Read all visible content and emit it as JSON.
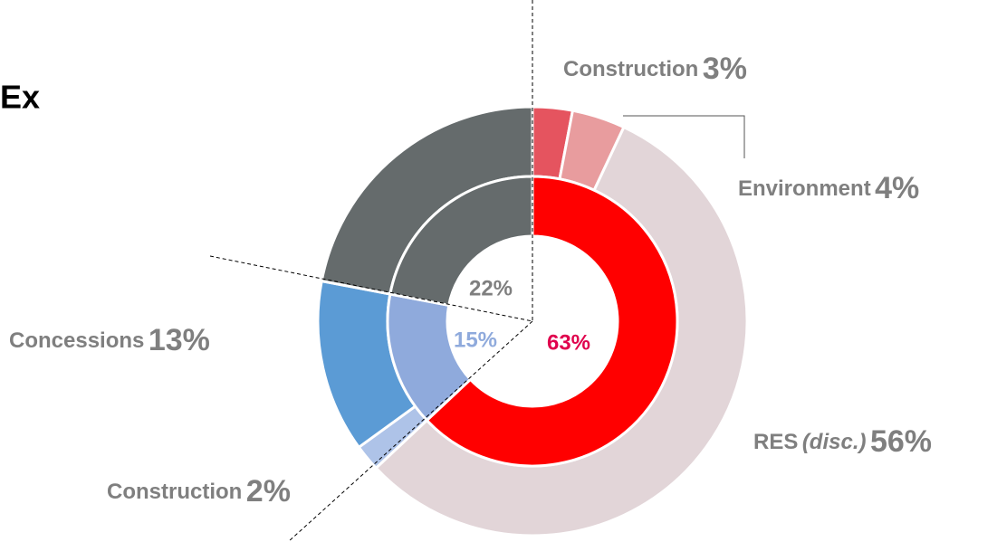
{
  "chart_data": {
    "type": "nested-donut",
    "title": "Ex",
    "inner": {
      "values": [
        63,
        15,
        22
      ],
      "value_labels": [
        "63%",
        "15%",
        "22%"
      ],
      "colors": [
        "#ff0000",
        "#8faadc",
        "#656b6c"
      ]
    },
    "outer": {
      "labels": [
        "Construction",
        "Environment",
        "RES",
        "Construction",
        "Concessions",
        null
      ],
      "qualifiers": [
        null,
        null,
        "(disc.)",
        null,
        null,
        null
      ],
      "values": [
        3,
        4,
        56,
        2,
        13,
        22
      ],
      "value_labels": [
        "3%",
        "4%",
        "56%",
        "2%",
        "13%",
        null
      ],
      "colors": [
        "#e5545f",
        "#e89c9e",
        "#e2d5d8",
        "#aec3e8",
        "#5b9bd5",
        "#656b6c"
      ]
    }
  }
}
